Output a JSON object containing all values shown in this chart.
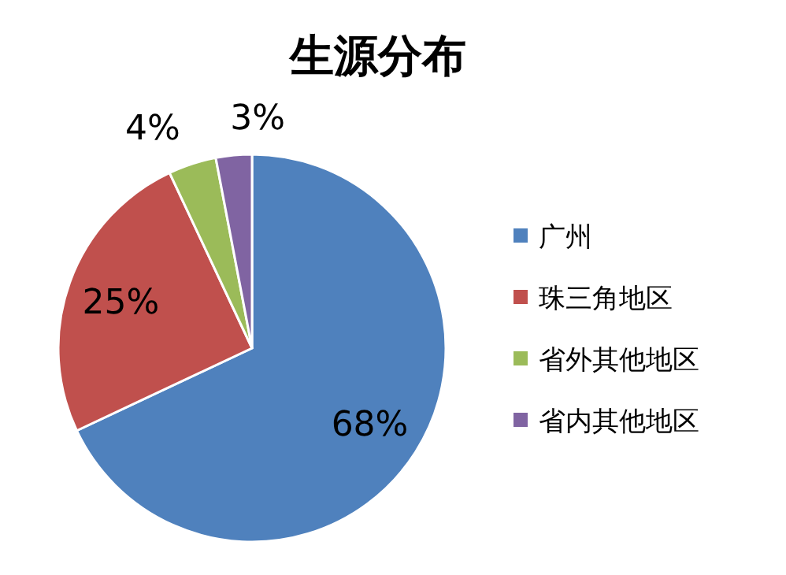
{
  "chart_data": {
    "type": "pie",
    "title": "生源分布",
    "categories": [
      "广州",
      "珠三角地区",
      "省外其他地区",
      "省内其他地区"
    ],
    "values": [
      68,
      25,
      4,
      3
    ],
    "colors": [
      "#4f81bd",
      "#c0504d",
      "#9bbb59",
      "#8064a2"
    ],
    "value_labels": [
      "68%",
      "25%",
      "4%",
      "3%"
    ],
    "legend": "right"
  }
}
